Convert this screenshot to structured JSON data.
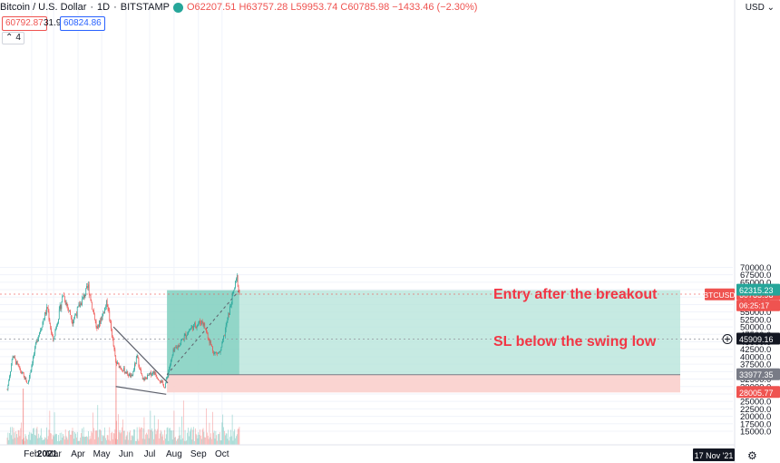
{
  "header": {
    "symbol": "Bitcoin / U.S. Dollar",
    "interval": "1D",
    "exchange": "BITSTAMP",
    "ohlc": "O62207.51 H63757.28 L59953.74 C60785.98 −1433.46 (−2.30%)",
    "sell_price": "60792.87",
    "spread": "31.99",
    "buy_price": "60824.86",
    "indicators_count": "4",
    "currency": "USD"
  },
  "annotations": {
    "entry": "Entry after the breakout",
    "sl": "SL below the swing low"
  },
  "colors": {
    "up": "#26a69a",
    "down": "#ef5350",
    "profit_zone": "#7fcfbe",
    "loss_zone": "#f9cfcc",
    "annotation": "#f23645"
  },
  "chart_data": {
    "type": "candlestick",
    "title": "Bitcoin / U.S. Dollar, 1D, BITSTAMP",
    "x_labels": [
      "2021",
      "Feb",
      "Mar",
      "Apr",
      "May",
      "Jun",
      "Jul",
      "Aug",
      "Sep",
      "Oct"
    ],
    "y_ticks": [
      15000,
      17500,
      20000,
      22500,
      25000,
      27500,
      30000,
      32500,
      35000,
      37500,
      40000,
      42500,
      45000,
      47500,
      50000,
      52500,
      55000,
      57500,
      60000,
      62500,
      65000,
      67500,
      70000
    ],
    "ylim": [
      13000,
      71500
    ],
    "last_date_label": "17 Nov '21",
    "price_labels": [
      {
        "label": "BTCUSD",
        "value": "60785.98",
        "price": 60785.98,
        "color": "#ef5350",
        "timer": "06:25:17"
      },
      {
        "value": "62315.23",
        "price": 62315.23,
        "color": "#26a69a"
      },
      {
        "value": "45909.16",
        "price": 45909.16,
        "color": "#131722"
      },
      {
        "value": "33977.35",
        "price": 33977.35,
        "color": "#787b86"
      },
      {
        "value": "28005.77",
        "price": 28005.77,
        "color": "#ef5350"
      }
    ],
    "candles_monthly_path": [
      [
        "2021-01-01",
        29000
      ],
      [
        "2021-01-08",
        40500
      ],
      [
        "2021-01-15",
        36500
      ],
      [
        "2021-01-27",
        31000
      ],
      [
        "2021-02-08",
        46000
      ],
      [
        "2021-02-21",
        56500
      ],
      [
        "2021-02-28",
        45000
      ],
      [
        "2021-03-13",
        61000
      ],
      [
        "2021-03-25",
        52000
      ],
      [
        "2021-04-14",
        63500
      ],
      [
        "2021-04-25",
        49000
      ],
      [
        "2021-05-08",
        58500
      ],
      [
        "2021-05-19",
        38000
      ],
      [
        "2021-06-08",
        33000
      ],
      [
        "2021-06-15",
        40000
      ],
      [
        "2021-06-22",
        32000
      ],
      [
        "2021-07-06",
        35000
      ],
      [
        "2021-07-20",
        30000
      ],
      [
        "2021-07-31",
        41500
      ],
      [
        "2021-08-22",
        49500
      ],
      [
        "2021-09-06",
        52000
      ],
      [
        "2021-09-21",
        41000
      ],
      [
        "2021-09-29",
        41500
      ],
      [
        "2021-10-15",
        61000
      ],
      [
        "2021-10-20",
        66500
      ],
      [
        "2021-10-23",
        61000
      ]
    ],
    "trade_setup": {
      "type": "long_position",
      "entry": 33977.35,
      "target": 62315.23,
      "stop": 28005.77
    },
    "trendlines": [
      {
        "name": "falling wedge upper",
        "from": [
          "2021-05-16",
          50000
        ],
        "to": [
          "2021-07-23",
          31500
        ]
      },
      {
        "name": "falling wedge lower",
        "from": [
          "2021-05-19",
          30000
        ],
        "to": [
          "2021-07-22",
          27400
        ]
      }
    ],
    "horizontal_lines": [
      61000,
      45909.16
    ]
  }
}
